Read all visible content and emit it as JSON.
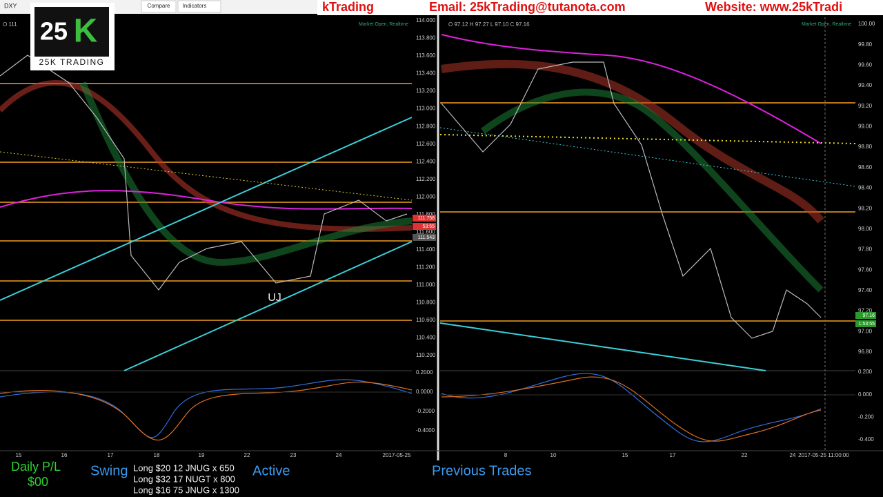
{
  "header": {
    "symbol": "DXY",
    "compare": "Compare",
    "indicators": "Indicators",
    "banner": [
      "kTrading",
      "Email: 25kTrading@tutanota.com",
      "Website: www.25kTradi"
    ]
  },
  "logo": {
    "mark_a": "25",
    "mark_b": "K",
    "text": "25K TRADING"
  },
  "left_chart": {
    "ohlc": "O 111",
    "status": "Market Open, Realtime",
    "annotation": "UJ",
    "price_axis": [
      "114.000",
      "113.800",
      "113.600",
      "113.400",
      "113.200",
      "113.000",
      "112.800",
      "112.600",
      "112.400",
      "112.200",
      "112.000",
      "111.800",
      "111.600",
      "111.400",
      "111.200",
      "111.000",
      "110.800",
      "110.600",
      "110.400",
      "110.200"
    ],
    "macd_axis": [
      "0.2000",
      "0.0000",
      "-0.2000",
      "-0.4000"
    ],
    "time_axis": [
      "15",
      "16",
      "17",
      "18",
      "19",
      "22",
      "23",
      "24",
      "2017-05-25"
    ],
    "price_tags": [
      "111.758",
      "53:55",
      "111.543"
    ]
  },
  "right_chart": {
    "ohlc": "O 97.12 H 97.27 L 97.10 C 97.16",
    "status": "Market Open, Realtime",
    "price_axis": [
      "100.00",
      "99.80",
      "99.60",
      "99.40",
      "99.20",
      "99.00",
      "98.80",
      "98.60",
      "98.40",
      "98.20",
      "98.00",
      "97.80",
      "97.60",
      "97.40",
      "97.20",
      "97.00",
      "96.80"
    ],
    "macd_axis": [
      "0.200",
      "0.000",
      "-0.200",
      "-0.400"
    ],
    "time_axis": [
      "8",
      "10",
      "15",
      "17",
      "22",
      "24",
      "2017-05-25 11:00:00"
    ],
    "price_tags": [
      "97.16",
      "1:53:55"
    ]
  },
  "footer": {
    "pl_label": "Daily P/L",
    "pl_value": "$00",
    "swing": "Swing",
    "trades": [
      "Long $20 12 JNUG x 650",
      "Long $32 17 NUGT x 800",
      "Long $16 75 JNUG x 1300"
    ],
    "active": "Active",
    "previous": "Previous Trades"
  }
}
